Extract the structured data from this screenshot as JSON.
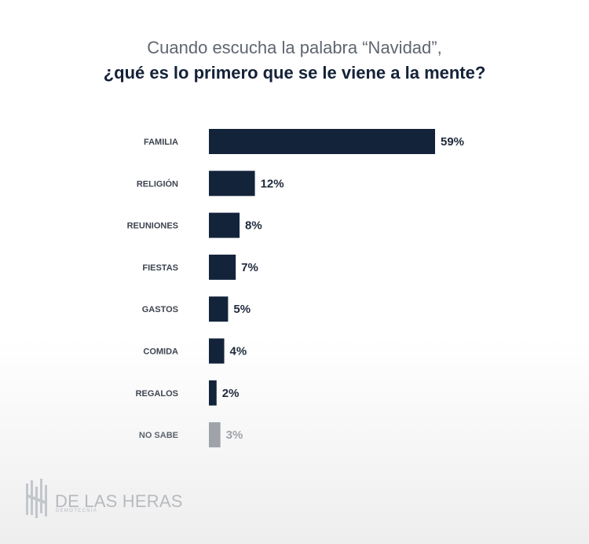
{
  "title": {
    "line1": "Cuando escucha la palabra “Navidad”,",
    "line2": "¿qué es lo primero que se le viene a la mente?"
  },
  "colors": {
    "bar": "#13233a",
    "muted_bar": "#9fa3a9",
    "label": "#3e4450",
    "muted_label": "#9fa3a9"
  },
  "chart_data": {
    "type": "bar",
    "orientation": "horizontal",
    "categories": [
      "FAMILIA",
      "RELIGIÓN",
      "REUNIONES",
      "FIESTAS",
      "GASTOS",
      "COMIDA",
      "REGALOS",
      "NO SABE"
    ],
    "values": [
      59,
      12,
      8,
      7,
      5,
      4,
      2,
      3
    ],
    "value_labels": [
      "59%",
      "12%",
      "8%",
      "7%",
      "5%",
      "4%",
      "2%",
      "3%"
    ],
    "muted": [
      false,
      false,
      false,
      false,
      false,
      false,
      false,
      true
    ],
    "unit": "%",
    "grid": false,
    "legend": false
  },
  "logo": {
    "name": "DE LAS HERAS",
    "sub": "DEMOTECNIA",
    "icon": "building-columns-logo"
  }
}
